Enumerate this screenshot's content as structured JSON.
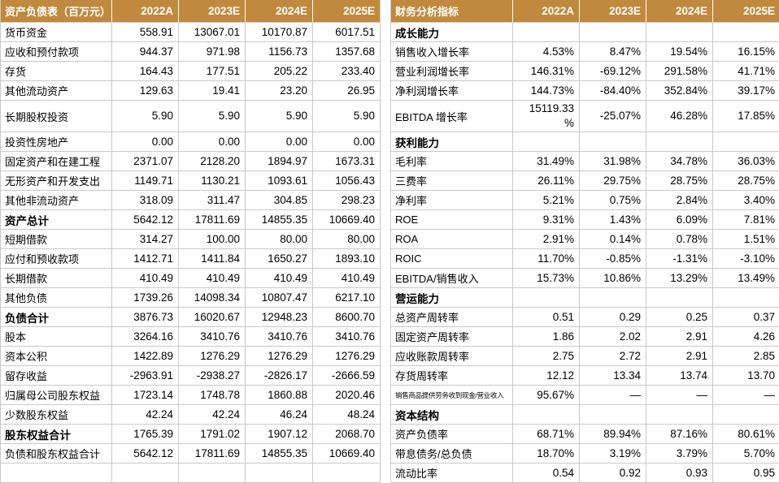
{
  "colors": {
    "header_bg": "#C0893D",
    "header_text": "#FFFFFF",
    "grid_line": "#C9C9C9",
    "body_text": "#000000",
    "row_bg": "#FFFFFF"
  },
  "left_table": {
    "title": "资产负债表（百万元）",
    "years": [
      "2022A",
      "2023E",
      "2024E",
      "2025E"
    ],
    "rows": [
      {
        "label": "货币资金",
        "values": [
          "558.91",
          "13067.01",
          "10170.87",
          "6017.51"
        ]
      },
      {
        "label": "应收和预付款项",
        "values": [
          "944.37",
          "971.98",
          "1156.73",
          "1357.68"
        ]
      },
      {
        "label": "存货",
        "values": [
          "164.43",
          "177.51",
          "205.22",
          "233.40"
        ]
      },
      {
        "label": "其他流动资产",
        "values": [
          "129.63",
          "19.41",
          "23.20",
          "26.95"
        ]
      },
      {
        "label": "长期股权投资",
        "tall": true,
        "values": [
          "5.90",
          "5.90",
          "5.90",
          "5.90"
        ]
      },
      {
        "label": "投资性房地产",
        "values": [
          "0.00",
          "0.00",
          "0.00",
          "0.00"
        ]
      },
      {
        "label": "固定资产和在建工程",
        "values": [
          "2371.07",
          "2128.20",
          "1894.97",
          "1673.31"
        ]
      },
      {
        "label": "无形资产和开发支出",
        "values": [
          "1149.71",
          "1130.21",
          "1093.61",
          "1056.43"
        ]
      },
      {
        "label": "其他非流动资产",
        "values": [
          "318.09",
          "311.47",
          "304.85",
          "298.23"
        ]
      },
      {
        "label": "资产总计",
        "bold": true,
        "values": [
          "5642.12",
          "17811.69",
          "14855.35",
          "10669.40"
        ]
      },
      {
        "label": "短期借款",
        "values": [
          "314.27",
          "100.00",
          "80.00",
          "80.00"
        ]
      },
      {
        "label": "应付和预收款项",
        "values": [
          "1412.71",
          "1411.84",
          "1650.27",
          "1893.10"
        ]
      },
      {
        "label": "长期借款",
        "values": [
          "410.49",
          "410.49",
          "410.49",
          "410.49"
        ]
      },
      {
        "label": "其他负债",
        "values": [
          "1739.26",
          "14098.34",
          "10807.47",
          "6217.10"
        ]
      },
      {
        "label": "负债合计",
        "bold": true,
        "values": [
          "3876.73",
          "16020.67",
          "12948.23",
          "8600.70"
        ]
      },
      {
        "label": "股本",
        "values": [
          "3264.16",
          "3410.76",
          "3410.76",
          "3410.76"
        ]
      },
      {
        "label": "资本公积",
        "values": [
          "1422.89",
          "1276.29",
          "1276.29",
          "1276.29"
        ]
      },
      {
        "label": "留存收益",
        "values": [
          "-2963.91",
          "-2938.27",
          "-2826.17",
          "-2666.59"
        ]
      },
      {
        "label": "归属母公司股东权益",
        "values": [
          "1723.14",
          "1748.78",
          "1860.88",
          "2020.46"
        ]
      },
      {
        "label": "少数股东权益",
        "values": [
          "42.24",
          "42.24",
          "46.24",
          "48.24"
        ]
      },
      {
        "label": "股东权益合计",
        "bold": true,
        "values": [
          "1765.39",
          "1791.02",
          "1907.12",
          "2068.70"
        ]
      },
      {
        "label": "负债和股东权益合计",
        "values": [
          "5642.12",
          "17811.69",
          "14855.35",
          "10669.40"
        ]
      },
      {
        "label": "",
        "empty": true,
        "values": [
          "",
          "",
          "",
          ""
        ]
      }
    ]
  },
  "right_table": {
    "title": "财务分析指标",
    "years": [
      "2022A",
      "2023E",
      "2024E",
      "2025E"
    ],
    "rows": [
      {
        "label": "成长能力",
        "section": true,
        "values": [
          "",
          "",
          "",
          ""
        ]
      },
      {
        "label": "销售收入增长率",
        "values": [
          "4.53%",
          "8.47%",
          "19.54%",
          "16.15%"
        ]
      },
      {
        "label": "营业利润增长率",
        "values": [
          "146.31%",
          "-69.12%",
          "291.58%",
          "41.71%"
        ]
      },
      {
        "label": "净利润增长率",
        "values": [
          "144.73%",
          "-84.40%",
          "352.84%",
          "39.17%"
        ]
      },
      {
        "label": "EBITDA 增长率",
        "tall": true,
        "values": [
          "15119.33\n%",
          "-25.07%",
          "46.28%",
          "17.85%"
        ]
      },
      {
        "label": "获利能力",
        "section": true,
        "values": [
          "",
          "",
          "",
          ""
        ]
      },
      {
        "label": "毛利率",
        "values": [
          "31.49%",
          "31.98%",
          "34.78%",
          "36.03%"
        ]
      },
      {
        "label": "三费率",
        "values": [
          "26.11%",
          "29.75%",
          "28.75%",
          "28.75%"
        ]
      },
      {
        "label": "净利率",
        "values": [
          "5.21%",
          "0.75%",
          "2.84%",
          "3.40%"
        ]
      },
      {
        "label": "ROE",
        "values": [
          "9.31%",
          "1.43%",
          "6.09%",
          "7.81%"
        ]
      },
      {
        "label": "ROA",
        "values": [
          "2.91%",
          "0.14%",
          "0.78%",
          "1.51%"
        ]
      },
      {
        "label": "ROIC",
        "values": [
          "11.70%",
          "-0.85%",
          "-1.31%",
          "-3.10%"
        ]
      },
      {
        "label": "EBITDA/销售收入",
        "values": [
          "15.73%",
          "10.86%",
          "13.29%",
          "13.49%"
        ]
      },
      {
        "label": "营运能力",
        "section": true,
        "values": [
          "",
          "",
          "",
          ""
        ]
      },
      {
        "label": "总资产周转率",
        "values": [
          "0.51",
          "0.29",
          "0.25",
          "0.37"
        ]
      },
      {
        "label": "固定资产周转率",
        "values": [
          "1.86",
          "2.02",
          "2.91",
          "4.26"
        ]
      },
      {
        "label": "应收账款周转率",
        "values": [
          "2.75",
          "2.72",
          "2.91",
          "2.85"
        ]
      },
      {
        "label": "存货周转率",
        "values": [
          "12.12",
          "13.34",
          "13.74",
          "13.70"
        ]
      },
      {
        "label": "销售商品提供劳务收到现金/营业收入",
        "small": true,
        "values": [
          "95.67%",
          "—",
          "—",
          "—"
        ]
      },
      {
        "label": "资本结构",
        "section": true,
        "values": [
          "",
          "",
          "",
          ""
        ]
      },
      {
        "label": "资产负债率",
        "values": [
          "68.71%",
          "89.94%",
          "87.16%",
          "80.61%"
        ]
      },
      {
        "label": "带息债务/总负债",
        "values": [
          "18.70%",
          "3.19%",
          "3.79%",
          "5.70%"
        ]
      },
      {
        "label": "流动比率",
        "values": [
          "0.54",
          "0.92",
          "0.93",
          "0.95"
        ]
      }
    ]
  }
}
